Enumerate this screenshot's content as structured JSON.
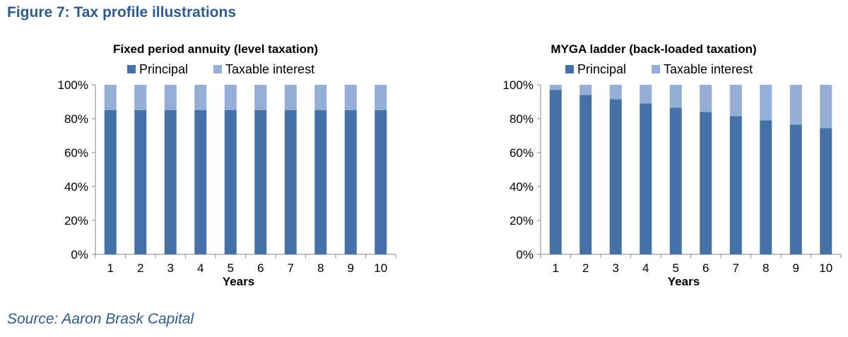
{
  "figure_title": "Figure 7: Tax profile illustrations",
  "source": "Source: Aaron Brask Capital",
  "colors": {
    "principal": "#4472a8",
    "interest": "#94aed6",
    "title": "#2e5c8e"
  },
  "chart_data": [
    {
      "type": "bar",
      "stacked": true,
      "title": "Fixed period annuity (level taxation)",
      "xlabel": "Years",
      "ylabel": "",
      "categories": [
        "1",
        "2",
        "3",
        "4",
        "5",
        "6",
        "7",
        "8",
        "9",
        "10"
      ],
      "ylim": [
        0,
        100
      ],
      "y_ticks": [
        "0%",
        "20%",
        "40%",
        "60%",
        "80%",
        "100%"
      ],
      "legend_position": "top",
      "series": [
        {
          "name": "Principal",
          "values": [
            85,
            85,
            85,
            85,
            85,
            85,
            85,
            85,
            85,
            85
          ]
        },
        {
          "name": "Taxable interest",
          "values": [
            15,
            15,
            15,
            15,
            15,
            15,
            15,
            15,
            15,
            15
          ]
        }
      ]
    },
    {
      "type": "bar",
      "stacked": true,
      "title": "MYGA ladder (back-loaded taxation)",
      "xlabel": "Years",
      "ylabel": "",
      "categories": [
        "1",
        "2",
        "3",
        "4",
        "5",
        "6",
        "7",
        "8",
        "9",
        "10"
      ],
      "ylim": [
        0,
        100
      ],
      "y_ticks": [
        "0%",
        "20%",
        "40%",
        "60%",
        "80%",
        "100%"
      ],
      "legend_position": "top",
      "series": [
        {
          "name": "Principal",
          "values": [
            97,
            94,
            91.5,
            89,
            86.5,
            84,
            81.5,
            79,
            76.5,
            74.5
          ]
        },
        {
          "name": "Taxable interest",
          "values": [
            3,
            6,
            8.5,
            11,
            13.5,
            16,
            18.5,
            21,
            23.5,
            25.5
          ]
        }
      ]
    }
  ]
}
